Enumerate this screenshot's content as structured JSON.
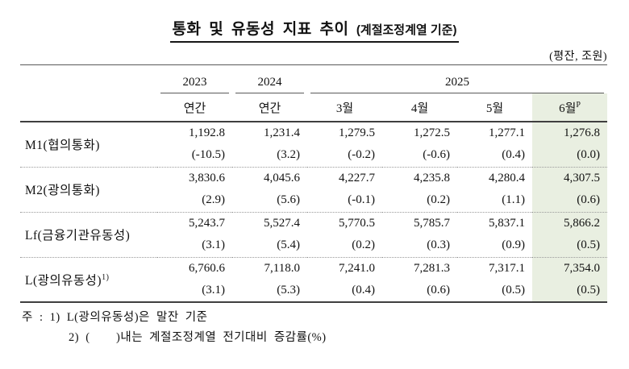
{
  "title": {
    "main": "통화 및 유동성 지표 추이",
    "qualifier": "(계절조정계열 기준)"
  },
  "unit_note": "(평잔, 조원)",
  "table": {
    "year_2023": "2023",
    "year_2024": "2024",
    "year_2025": "2025",
    "subheaders": {
      "annual1": "연간",
      "annual2": "연간",
      "mar": "3월",
      "apr": "4월",
      "may": "5월",
      "jun": "6월",
      "jun_sup": "P"
    },
    "rows": [
      {
        "label": "M1(협의통화)",
        "label_sup": "",
        "values": [
          "1,192.8",
          "1,231.4",
          "1,279.5",
          "1,272.5",
          "1,277.1",
          "1,276.8"
        ],
        "rates": [
          "(-10.5)",
          "(3.2)",
          "(-0.2)",
          "(-0.6)",
          "(0.4)",
          "(0.0)"
        ]
      },
      {
        "label": "M2(광의통화)",
        "label_sup": "",
        "values": [
          "3,830.6",
          "4,045.6",
          "4,227.7",
          "4,235.8",
          "4,280.4",
          "4,307.5"
        ],
        "rates": [
          "(2.9)",
          "(5.6)",
          "(-0.1)",
          "(0.2)",
          "(1.1)",
          "(0.6)"
        ]
      },
      {
        "label": "Lf(금융기관유동성)",
        "label_sup": "",
        "values": [
          "5,243.7",
          "5,527.4",
          "5,770.5",
          "5,785.7",
          "5,837.1",
          "5,866.2"
        ],
        "rates": [
          "(3.1)",
          "(5.4)",
          "(0.2)",
          "(0.3)",
          "(0.9)",
          "(0.5)"
        ]
      },
      {
        "label": "L(광의유동성)",
        "label_sup": "1)",
        "values": [
          "6,760.6",
          "7,118.0",
          "7,241.0",
          "7,281.3",
          "7,317.1",
          "7,354.0"
        ],
        "rates": [
          "(3.1)",
          "(5.3)",
          "(0.4)",
          "(0.6)",
          "(0.5)",
          "(0.5)"
        ]
      }
    ]
  },
  "notes": {
    "line1": "주 : 1) L(광의유동성)은 말잔 기준",
    "line2": "2) (    )내는 계절조정계열 전기대비 증감률(%)"
  },
  "colors": {
    "highlight": "#e9efe1",
    "rule_dark": "#3f3f3f",
    "rule_light": "#5a5a5a"
  }
}
